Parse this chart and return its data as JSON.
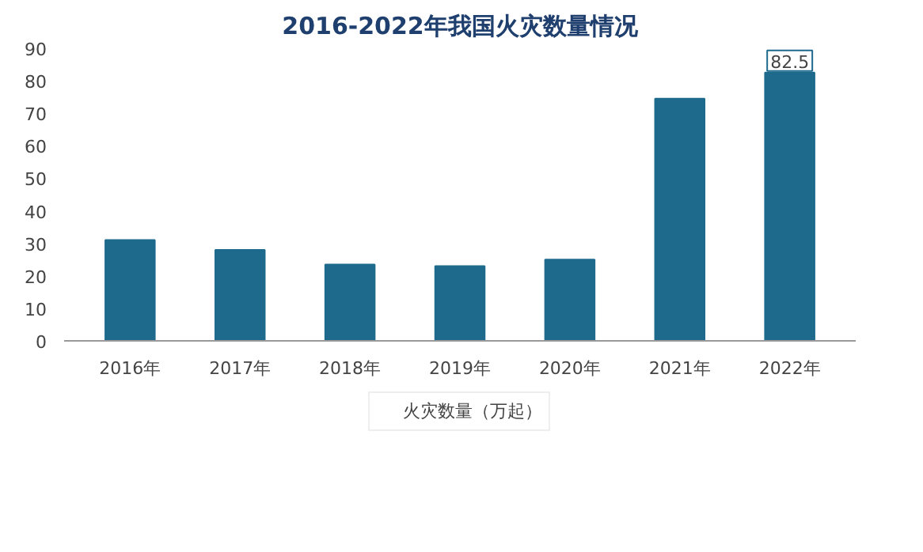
{
  "chart_data": {
    "type": "bar",
    "title": "2016-2022年我国火灾数量情况",
    "categories": [
      "2016年",
      "2017年",
      "2018年",
      "2019年",
      "2020年",
      "2021年",
      "2022年"
    ],
    "series": [
      {
        "name": "火灾数量（万起）",
        "color": "#1d6a8c",
        "values": [
          31,
          28,
          23.5,
          23,
          25,
          74.5,
          82.5
        ],
        "value_labels": [
          null,
          null,
          null,
          null,
          null,
          null,
          "82.5"
        ]
      }
    ],
    "ylim": [
      0,
      90
    ],
    "yticks": [
      0,
      10,
      20,
      30,
      40,
      50,
      60,
      70,
      80,
      90
    ],
    "grid": false,
    "legend": "bottom"
  }
}
